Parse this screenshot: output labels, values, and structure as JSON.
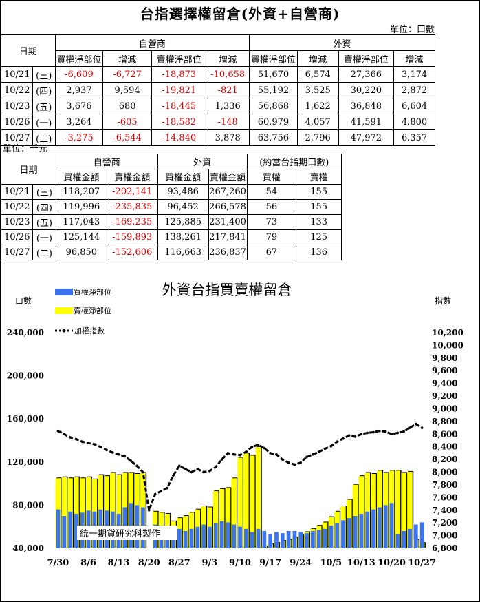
{
  "title": "台指選擇權留倉(外資+自營商)",
  "unit_contracts": "單位：口數",
  "unit_money": "單位：千元",
  "table1": {
    "date_header": "日期",
    "groups": [
      "自營商",
      "外資"
    ],
    "subheaders": [
      "買權淨部位",
      "增減",
      "賣權淨部位",
      "增減",
      "買權淨部位",
      "增減",
      "賣權淨部位",
      "增減"
    ],
    "rows": [
      {
        "date": "10/21",
        "dow": "(三)",
        "cells": [
          "-6,609",
          "-6,727",
          "-18,873",
          "-10,658",
          "51,670",
          "6,574",
          "27,366",
          "3,174"
        ]
      },
      {
        "date": "10/22",
        "dow": "(四)",
        "cells": [
          "2,937",
          "9,594",
          "-19,821",
          "-821",
          "55,192",
          "3,525",
          "30,220",
          "2,872"
        ]
      },
      {
        "date": "10/23",
        "dow": "(五)",
        "cells": [
          "3,676",
          "680",
          "-18,445",
          "1,336",
          "56,868",
          "1,622",
          "36,848",
          "6,604"
        ]
      },
      {
        "date": "10/26",
        "dow": "(一)",
        "cells": [
          "3,264",
          "-605",
          "-18,582",
          "-148",
          "60,979",
          "4,057",
          "41,591",
          "4,800"
        ]
      },
      {
        "date": "10/27",
        "dow": "(二)",
        "cells": [
          "-3,275",
          "-6,544",
          "-14,840",
          "3,878",
          "63,756",
          "2,796",
          "47,972",
          "6,357"
        ]
      }
    ]
  },
  "table2": {
    "date_header": "日期",
    "groups": [
      "自營商",
      "外資",
      "(約當台指期口數)"
    ],
    "subheaders": [
      "買權金額",
      "賣權金額",
      "買權金額",
      "賣權金額",
      "買權",
      "賣權"
    ],
    "rows": [
      {
        "date": "10/21",
        "dow": "(三)",
        "cells": [
          "118,207",
          "-202,141",
          "93,486",
          "267,260",
          "54",
          "155"
        ]
      },
      {
        "date": "10/22",
        "dow": "(四)",
        "cells": [
          "119,996",
          "-235,835",
          "96,452",
          "266,578",
          "56",
          "155"
        ]
      },
      {
        "date": "10/23",
        "dow": "(五)",
        "cells": [
          "117,043",
          "-169,235",
          "125,885",
          "231,400",
          "73",
          "133"
        ]
      },
      {
        "date": "10/26",
        "dow": "(一)",
        "cells": [
          "125,144",
          "-159,893",
          "138,261",
          "217,841",
          "79",
          "125"
        ]
      },
      {
        "date": "10/27",
        "dow": "(二)",
        "cells": [
          "96,850",
          "-152,606",
          "116,663",
          "236,837",
          "67",
          "136"
        ]
      }
    ]
  },
  "chart_data": {
    "type": "bar",
    "title": "外資台指買賣權留倉",
    "ylabel_left": "口數",
    "ylabel_right": "指數",
    "watermark": "統一期貨研究科製作",
    "legend": [
      "買權淨部位",
      "賣權淨部位",
      "加權指數"
    ],
    "colors": {
      "call": "#3b73f0",
      "put": "#ffff00",
      "index": "#000000"
    },
    "ylim_left": [
      40000,
      240000
    ],
    "yticks_left": [
      "240,000",
      "200,000",
      "160,000",
      "120,000",
      "80,000",
      "40,000"
    ],
    "ylim_right": [
      6800,
      10200
    ],
    "yticks_right": [
      "10,200",
      "10,000",
      "9,800",
      "9,600",
      "9,400",
      "9,200",
      "9,000",
      "8,800",
      "8,600",
      "8,400",
      "8,200",
      "8,000",
      "7,800",
      "7,600",
      "7,400",
      "7,200",
      "7,000",
      "6,800"
    ],
    "xtick_labels": [
      "7/30",
      "8/6",
      "8/13",
      "8/20",
      "8/27",
      "9/3",
      "9/10",
      "9/17",
      "9/24",
      "10/5",
      "10/13",
      "10/20",
      "10/27"
    ],
    "xtick_index": [
      0,
      5,
      10,
      15,
      20,
      25,
      30,
      35,
      40,
      45,
      50,
      55,
      60
    ],
    "series": [
      {
        "name": "買權淨部位",
        "values": [
          76000,
          70000,
          74000,
          72000,
          73000,
          75000,
          74000,
          76000,
          75000,
          74000,
          72000,
          78000,
          82000,
          80000,
          78000,
          40000,
          62000,
          60000,
          58000,
          60000,
          58000,
          56000,
          58000,
          60000,
          62000,
          60000,
          63000,
          65000,
          64000,
          62000,
          60000,
          58000,
          55000,
          58000,
          56000,
          53000,
          55000,
          54000,
          56000,
          56000,
          55000,
          54000,
          56000,
          57000,
          58000,
          61000,
          63000,
          66000,
          68000,
          70000,
          72000,
          74000,
          76000,
          78000,
          80000,
          82000,
          53000,
          56000,
          58000,
          62000,
          64000
        ]
      },
      {
        "name": "賣權淨部位",
        "values": [
          105000,
          106000,
          105000,
          106000,
          105000,
          106000,
          104000,
          108000,
          107000,
          110000,
          108000,
          110000,
          110000,
          109000,
          110000,
          40000,
          74000,
          73000,
          72000,
          65000,
          68000,
          70000,
          73000,
          76000,
          79000,
          78000,
          93000,
          95000,
          96000,
          105000,
          124000,
          128000,
          126000,
          134000,
          42000,
          44000,
          45000,
          47000,
          48000,
          50000,
          52000,
          55000,
          58000,
          61000,
          64000,
          69000,
          74000,
          79000,
          85000,
          99000,
          107000,
          110000,
          109000,
          112000,
          110000,
          112000,
          112000,
          110000,
          111000,
          48000,
          45000
        ]
      },
      {
        "name": "加權指數",
        "values": [
          8650,
          8600,
          8550,
          8520,
          8480,
          8460,
          8440,
          8400,
          8350,
          8310,
          8280,
          8250,
          8180,
          8100,
          8000,
          7400,
          7650,
          7700,
          7750,
          7950,
          8100,
          8050,
          8000,
          8050,
          8000,
          8020,
          8080,
          8200,
          8300,
          8280,
          8270,
          8320,
          8400,
          8430,
          8380,
          8300,
          8280,
          8200,
          8150,
          8120,
          8150,
          8240,
          8280,
          8320,
          8370,
          8410,
          8480,
          8530,
          8580,
          8560,
          8600,
          8620,
          8630,
          8650,
          8640,
          8600,
          8620,
          8640,
          8700,
          8760,
          8700
        ]
      }
    ]
  }
}
